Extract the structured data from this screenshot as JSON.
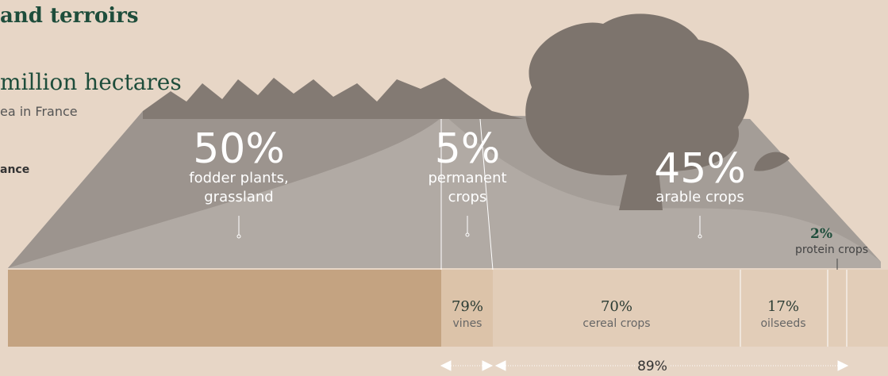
{
  "header": {
    "title": "and terroirs",
    "headline": "million hectares",
    "subline": "ea in France",
    "note": "ance"
  },
  "landscape": {
    "fodder": {
      "percent": "50%",
      "label": [
        "fodder plants,",
        "grassland"
      ]
    },
    "permanent": {
      "percent": "5%",
      "label": [
        "permanent",
        "crops"
      ]
    },
    "arable": {
      "percent": "45%",
      "label": [
        "arable crops"
      ]
    }
  },
  "protein": {
    "percent": "2%",
    "label": "protein crops"
  },
  "bar": {
    "vines": {
      "percent": "79%",
      "label": "vines"
    },
    "cereal": {
      "percent": "70%",
      "label": "cereal crops"
    },
    "oilseeds": {
      "percent": "17%",
      "label": "oilseeds"
    }
  },
  "span": {
    "label": "89%"
  }
}
